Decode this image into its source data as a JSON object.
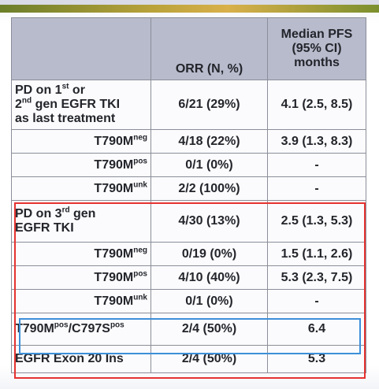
{
  "table": {
    "headers": {
      "blank": "",
      "orr": "ORR (N, %)",
      "pfs_line1": "Median PFS",
      "pfs_line2": "(95% CI)",
      "pfs_line3": "months"
    },
    "rows": [
      {
        "label_line1": "PD on 1",
        "label_sup1": "st",
        "label_line1b": " or",
        "label_line2": "2",
        "label_sup2": "nd",
        "label_line2b": " gen EGFR TKI",
        "label_line3": "as last treatment",
        "orr": "6/21 (29%)",
        "pfs": "4.1 (2.5, 8.5)"
      },
      {
        "label": "T790M",
        "label_sup": "neg",
        "orr": "4/18 (22%)",
        "pfs": "3.9 (1.3, 8.3)"
      },
      {
        "label": "T790M",
        "label_sup": "pos",
        "orr": "0/1 (0%)",
        "pfs": "-"
      },
      {
        "label": "T790M",
        "label_sup": "unk",
        "orr": "2/2 (100%)",
        "pfs": "-"
      },
      {
        "label_line1": "PD on 3",
        "label_sup1": "rd",
        "label_line1b": " gen",
        "label_line2": "EGFR TKI",
        "orr": "4/30 (13%)",
        "pfs": "2.5 (1.3, 5.3)"
      },
      {
        "label": "T790M",
        "label_sup": "neg",
        "orr": "0/19 (0%)",
        "pfs": "1.5 (1.1, 2.6)"
      },
      {
        "label": "T790M",
        "label_sup": "pos",
        "orr": "4/10 (40%)",
        "pfs": "5.3 (2.3, 7.5)"
      },
      {
        "label": "T790M",
        "label_sup": "unk",
        "orr": "0/1 (0%)",
        "pfs": "-"
      },
      {
        "label_a": "T790M",
        "label_sup_a": "pos",
        "label_b": "/C797S",
        "label_sup_b": "pos",
        "orr": "2/4 (50%)",
        "pfs": "6.4"
      },
      {
        "label": "EGFR Exon 20 Ins",
        "orr": "2/4 (50%)",
        "pfs": "5.3"
      }
    ]
  },
  "colors": {
    "header_bg": "#b8bbcc",
    "highlight_red": "#e53330",
    "highlight_blue": "#3d8fd9"
  }
}
